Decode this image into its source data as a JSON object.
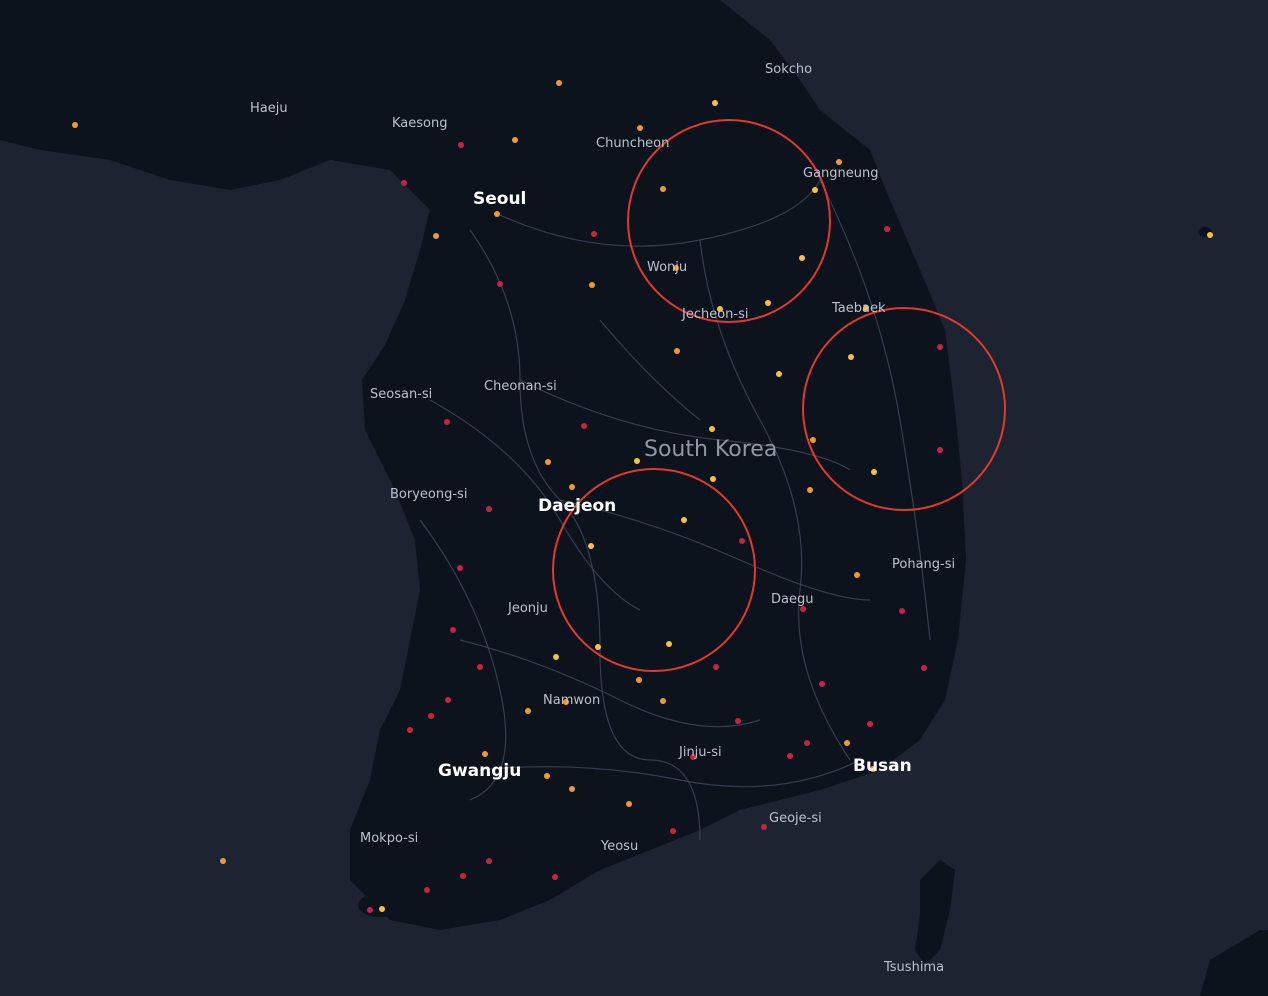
{
  "map": {
    "country_label": "South Korea",
    "colors": {
      "sea": "#1b2430",
      "land": "#0d131c",
      "road": "#3b4656",
      "highlight_circle": "#e03a2f",
      "point_orange": "#f29a2e",
      "point_yellow": "#f6c340",
      "point_red": "#c8243f"
    },
    "labels": {
      "seoul": "Seoul",
      "daejeon": "Daejeon",
      "gwangju": "Gwangju",
      "busan": "Busan",
      "haeju": "Haeju",
      "kaesong": "Kaesong",
      "chuncheon": "Chuncheon",
      "sokcho": "Sokcho",
      "gangneung": "Gangneung",
      "wonju": "Wonju",
      "jecheon": "Jecheon-si",
      "taebaek": "Taebaek",
      "seosan": "Seosan-si",
      "cheonan": "Cheonan-si",
      "boryeong": "Boryeong-si",
      "jeonju": "Jeonju",
      "pohang": "Pohang-si",
      "daegu": "Daegu",
      "namwon": "Namwon",
      "jinju": "Jinju-si",
      "geoje": "Geoje-si",
      "yeosu": "Yeosu",
      "mokpo": "Mokpo-si",
      "tsushima": "Tsushima"
    }
  }
}
